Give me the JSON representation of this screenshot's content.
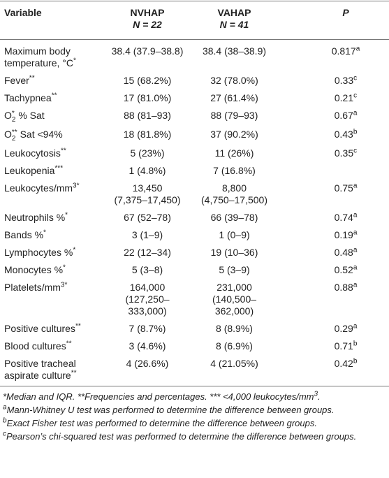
{
  "table": {
    "header": {
      "variable": "Variable",
      "nvhap": [
        "NVHAP",
        "N = 22"
      ],
      "vahap": [
        "VAHAP",
        "N = 41"
      ],
      "p": "P"
    },
    "rows": [
      {
        "variable": [
          "Maximum body temperature, °C",
          {
            "sup": "*"
          }
        ],
        "nvhap": "38.4 (37.9–38.8)",
        "vahap": "38.4 (38–38.9)",
        "p": "0.817",
        "p_note": "a"
      },
      {
        "variable": [
          "Fever",
          {
            "sup": "**"
          }
        ],
        "nvhap": "15 (68.2%)",
        "vahap": "32 (78.0%)",
        "p": "0.33",
        "p_note": "c"
      },
      {
        "variable": [
          "Tachypnea",
          {
            "sup": "**"
          }
        ],
        "nvhap": "17 (81.0%)",
        "vahap": "27 (61.4%)",
        "p": "0.21",
        "p_note": "c"
      },
      {
        "variable": [
          "O",
          {
            "sub": "2",
            "sup": "*"
          },
          " % Sat"
        ],
        "nvhap": "88 (81–93)",
        "vahap": "88 (79–93)",
        "p": "0.67",
        "p_note": "a"
      },
      {
        "variable": [
          "O",
          {
            "sub": "2",
            "sup": "**"
          },
          " Sat <94%"
        ],
        "nvhap": "18 (81.8%)",
        "vahap": "37 (90.2%)",
        "p": "0.43",
        "p_note": "b"
      },
      {
        "variable": [
          "Leukocytosis",
          {
            "sup": "**"
          }
        ],
        "nvhap": "5 (23%)",
        "vahap": "11 (26%)",
        "p": "0.35",
        "p_note": "c"
      },
      {
        "variable": [
          "Leukopenia",
          {
            "sup": "***"
          }
        ],
        "nvhap": "1 (4.8%)",
        "vahap": "7 (16.8%)",
        "p": null,
        "p_note": null
      },
      {
        "variable": [
          "Leukocytes/mm",
          {
            "sup": "3*"
          }
        ],
        "nvhap": [
          "13,450",
          "(7,375–17,450)"
        ],
        "vahap": [
          "8,800",
          "(4,750–17,500)"
        ],
        "p": "0.75",
        "p_note": "a"
      },
      {
        "variable": [
          "Neutrophils %",
          {
            "sup": "*"
          }
        ],
        "nvhap": "67 (52–78)",
        "vahap": "66 (39–78)",
        "p": "0.74",
        "p_note": "a"
      },
      {
        "variable": [
          "Bands %",
          {
            "sup": "*"
          }
        ],
        "nvhap": "3 (1–9)",
        "vahap": "1 (0–9)",
        "p": "0.19",
        "p_note": "a"
      },
      {
        "variable": [
          "Lymphocytes %",
          {
            "sup": "*"
          }
        ],
        "nvhap": "22 (12–34)",
        "vahap": "19 (10–36)",
        "p": "0.48",
        "p_note": "a"
      },
      {
        "variable": [
          "Monocytes %",
          {
            "sup": "*"
          }
        ],
        "nvhap": "5 (3–8)",
        "vahap": "5 (3–9)",
        "p": "0.52",
        "p_note": "a"
      },
      {
        "variable": [
          "Platelets/mm",
          {
            "sup": "3*"
          }
        ],
        "nvhap": [
          "164,000",
          "(127,250–",
          "333,000)"
        ],
        "vahap": [
          "231,000",
          "(140,500–",
          "362,000)"
        ],
        "p": "0.88",
        "p_note": "a"
      },
      {
        "variable": [
          "Positive cultures",
          {
            "sup": "**"
          }
        ],
        "nvhap": "7 (8.7%)",
        "vahap": "8 (8.9%)",
        "p": "0.29",
        "p_note": "a"
      },
      {
        "variable": [
          "Blood cultures",
          {
            "sup": "**"
          }
        ],
        "nvhap": "3 (4.6%)",
        "vahap": "8 (6.9%)",
        "p": "0.71",
        "p_note": "b"
      },
      {
        "variable": [
          "Positive tracheal aspirate culture",
          {
            "sup": "**"
          }
        ],
        "nvhap": "4 (26.6%)",
        "vahap": "4 (21.05%)",
        "p": "0.42",
        "p_note": "b"
      }
    ]
  },
  "footnotes": [
    [
      "*Median and IQR. **Frequencies and percentages. *** <4,000 leukocytes/mm",
      {
        "sup": "3"
      },
      "."
    ],
    [
      {
        "sup": "a"
      },
      "Mann-Whitney U test was performed to determine the difference between groups."
    ],
    [
      {
        "sup": "b"
      },
      "Exact Fisher test was performed to determine the difference between groups."
    ],
    [
      {
        "sup": "c"
      },
      "Pearson’s chi-squared test was performed to determine the difference between groups."
    ]
  ]
}
